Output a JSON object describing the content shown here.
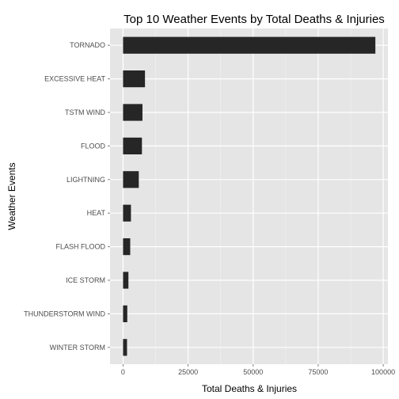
{
  "chart_data": {
    "type": "bar",
    "orientation": "horizontal",
    "title": "Top 10 Weather Events by Total Deaths & Injuries",
    "xlabel": "Total Deaths & Injuries",
    "ylabel": "Weather Events",
    "categories": [
      "TORNADO",
      "EXCESSIVE HEAT",
      "TSTM WIND",
      "FLOOD",
      "LIGHTNING",
      "HEAT",
      "FLASH FLOOD",
      "ICE STORM",
      "THUNDERSTORM WIND",
      "WINTER STORM"
    ],
    "values": [
      96979,
      8428,
      7461,
      7259,
      6046,
      3037,
      2755,
      2064,
      1621,
      1527
    ],
    "xlim": [
      -5000,
      101800
    ],
    "xticks": [
      0,
      25000,
      50000,
      75000,
      100000
    ],
    "xtick_labels": [
      "0",
      "25000",
      "50000",
      "75000",
      "100000"
    ],
    "grid": true,
    "colors": {
      "bar": "#262626",
      "panel_background": "#e5e5e5",
      "grid_major": "#ffffff",
      "grid_minor": "#f2f2f2",
      "tick_text": "#4d4d4d"
    }
  }
}
